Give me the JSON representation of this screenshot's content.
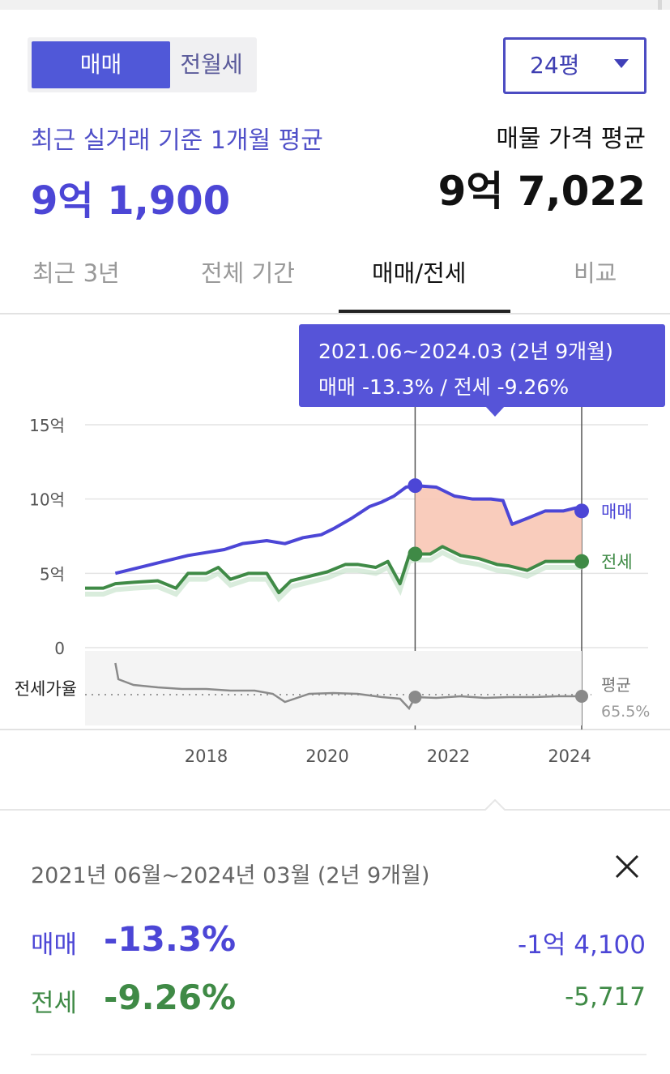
{
  "deal_type": {
    "options": [
      "매매",
      "전월세"
    ],
    "selected": "매매"
  },
  "size_select": {
    "value": "24평"
  },
  "summary": {
    "recent_label": "최근 실거래 기준 1개월 평균",
    "recent_value": "9억 1,900",
    "listing_label": "매물 가격 평균",
    "listing_value": "9억 7,022"
  },
  "tabs": [
    {
      "label": "최근 3년",
      "active": false
    },
    {
      "label": "전체 기간",
      "active": false
    },
    {
      "label": "매매/전세",
      "active": true
    },
    {
      "label": "비교",
      "active": false
    }
  ],
  "tooltip": {
    "line1": "2021.06~2024.03 (2년 9개월)",
    "line2": "매매 -13.3%  /  전세 -9.26%"
  },
  "colors": {
    "accent": "#5654d8",
    "sale": "#4c46d6",
    "jeonse": "#3f8a46",
    "ratio": "#8a8a8a",
    "range_fill": "#f8c7b5"
  },
  "chart_data": {
    "type": "line",
    "y_ticks": [
      "15억",
      "10억",
      "5억",
      "0"
    ],
    "x_ticks": [
      "2018",
      "2020",
      "2022",
      "2024"
    ],
    "ylim": [
      0,
      15
    ],
    "ylabel_unit": "억",
    "highlight_range": [
      "2021.06",
      "2024.03"
    ],
    "series": [
      {
        "name": "매매",
        "x": [
          2016.5,
          2016.7,
          2017.0,
          2017.4,
          2017.7,
          2018.0,
          2018.3,
          2018.6,
          2019.0,
          2019.3,
          2019.6,
          2019.9,
          2020.1,
          2020.4,
          2020.7,
          2020.9,
          2021.1,
          2021.3,
          2021.45,
          2021.8,
          2022.1,
          2022.4,
          2022.7,
          2022.9,
          2023.05,
          2023.3,
          2023.6,
          2023.9,
          2024.1,
          2024.2
        ],
        "values": [
          5.0,
          5.2,
          5.5,
          5.9,
          6.2,
          6.4,
          6.6,
          7.0,
          7.2,
          7.0,
          7.4,
          7.6,
          8.0,
          8.7,
          9.5,
          9.8,
          10.2,
          10.8,
          10.9,
          10.8,
          10.2,
          10.0,
          10.0,
          9.9,
          8.3,
          8.7,
          9.2,
          9.2,
          9.4,
          9.2
        ]
      },
      {
        "name": "전세",
        "x": [
          2016.0,
          2016.3,
          2016.5,
          2016.8,
          2017.2,
          2017.5,
          2017.7,
          2018.0,
          2018.2,
          2018.4,
          2018.7,
          2019.0,
          2019.2,
          2019.4,
          2019.7,
          2020.0,
          2020.3,
          2020.5,
          2020.8,
          2021.0,
          2021.2,
          2021.35,
          2021.45,
          2021.7,
          2021.9,
          2022.2,
          2022.5,
          2022.8,
          2023.0,
          2023.3,
          2023.6,
          2023.9,
          2024.1,
          2024.2
        ],
        "values": [
          4.0,
          4.0,
          4.3,
          4.4,
          4.5,
          4.0,
          5.0,
          5.0,
          5.4,
          4.6,
          5.0,
          5.0,
          3.7,
          4.5,
          4.8,
          5.1,
          5.6,
          5.6,
          5.4,
          5.8,
          4.3,
          6.2,
          6.3,
          6.3,
          6.8,
          6.2,
          6.0,
          5.6,
          5.5,
          5.2,
          5.8,
          5.8,
          5.8,
          5.8
        ]
      }
    ],
    "sub_chart": {
      "label": "전세가율",
      "average_label": "평균",
      "average_value": "65.5%"
    },
    "end_labels": {
      "sale": "매매",
      "jeonse": "전세"
    }
  },
  "detail": {
    "period": "2021년 06월~2024년 03월 (2년 9개월)",
    "sale_label": "매매",
    "sale_pct": "-13.3%",
    "sale_amount": "-1억 4,100",
    "jeonse_label": "전세",
    "jeonse_pct": "-9.26%",
    "jeonse_amount": "-5,717"
  }
}
